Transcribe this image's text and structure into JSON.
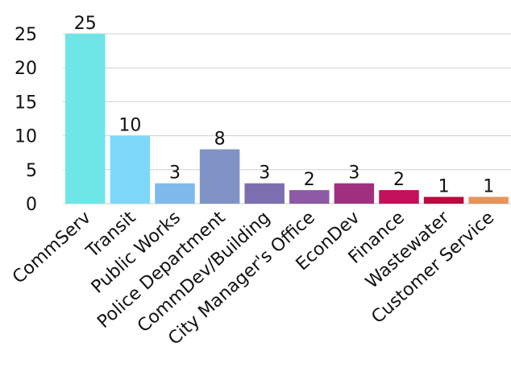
{
  "chart_data": {
    "type": "bar",
    "categories": [
      "CommServ",
      "Transit",
      "Public Works",
      "Police Department",
      "CommDev/Building",
      "City Manager's Office",
      "EconDev",
      "Finance",
      "Wastewater",
      "Customer Service"
    ],
    "values": [
      25,
      10,
      3,
      8,
      3,
      2,
      3,
      2,
      1,
      1
    ],
    "colors": [
      "#6ee6e8",
      "#7dd8f8",
      "#80b9ec",
      "#7f93c6",
      "#7c6fb0",
      "#8e5aa6",
      "#a0307f",
      "#c3105a",
      "#b80b3f",
      "#e8935a"
    ],
    "ylim": [
      0,
      25
    ],
    "yticks": [
      0,
      5,
      10,
      15,
      20,
      25
    ],
    "grid": true
  }
}
